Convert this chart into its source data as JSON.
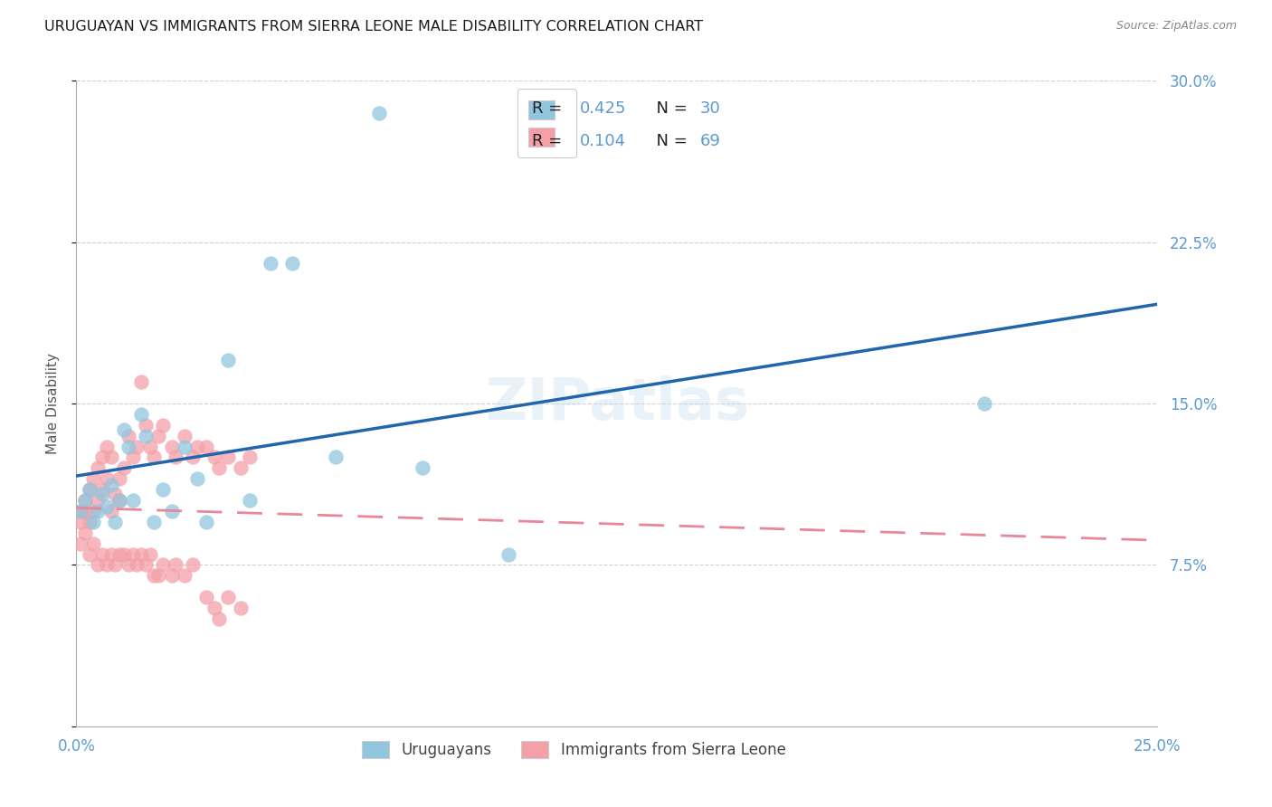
{
  "title": "URUGUAYAN VS IMMIGRANTS FROM SIERRA LEONE MALE DISABILITY CORRELATION CHART",
  "source": "Source: ZipAtlas.com",
  "ylabel": "Male Disability",
  "x_min": 0.0,
  "x_max": 0.25,
  "y_min": 0.0,
  "y_max": 0.3,
  "y_ticks": [
    0.0,
    0.075,
    0.15,
    0.225,
    0.3
  ],
  "y_tick_labels": [
    "",
    "7.5%",
    "15.0%",
    "22.5%",
    "30.0%"
  ],
  "x_ticks": [
    0.0,
    0.05,
    0.1,
    0.15,
    0.2,
    0.25
  ],
  "x_tick_labels": [
    "0.0%",
    "",
    "",
    "",
    "",
    "25.0%"
  ],
  "color_uruguayan": "#92c5de",
  "color_sierra_leone": "#f4a0a8",
  "color_line_uruguayan": "#2166ac",
  "color_line_sierra_leone": "#e8869a",
  "watermark": "ZIPatlas",
  "r1": "0.425",
  "n1": "30",
  "r2": "0.104",
  "n2": "69",
  "legend_label1": "Uruguayans",
  "legend_label2": "Immigrants from Sierra Leone",
  "tick_color": "#5b9bd5",
  "legend_r_color": "#5b9bd5",
  "legend_n_color": "#5b9bd5",
  "legend_rn_label_color": "#333333",
  "background_color": "#ffffff",
  "grid_color": "#d0d0d0",
  "uruguayan_x": [
    0.001,
    0.002,
    0.003,
    0.004,
    0.005,
    0.006,
    0.007,
    0.008,
    0.009,
    0.01,
    0.011,
    0.012,
    0.013,
    0.015,
    0.016,
    0.018,
    0.02,
    0.022,
    0.025,
    0.028,
    0.03,
    0.035,
    0.04,
    0.045,
    0.05,
    0.06,
    0.07,
    0.08,
    0.1,
    0.21
  ],
  "uruguayan_y": [
    0.1,
    0.105,
    0.11,
    0.095,
    0.1,
    0.108,
    0.102,
    0.112,
    0.095,
    0.105,
    0.138,
    0.13,
    0.105,
    0.145,
    0.135,
    0.095,
    0.11,
    0.1,
    0.13,
    0.115,
    0.095,
    0.17,
    0.105,
    0.215,
    0.215,
    0.125,
    0.285,
    0.12,
    0.08,
    0.15
  ],
  "sierra_leone_x": [
    0.001,
    0.001,
    0.002,
    0.002,
    0.003,
    0.003,
    0.004,
    0.004,
    0.005,
    0.005,
    0.006,
    0.006,
    0.007,
    0.007,
    0.008,
    0.008,
    0.009,
    0.01,
    0.01,
    0.011,
    0.012,
    0.013,
    0.014,
    0.015,
    0.016,
    0.017,
    0.018,
    0.019,
    0.02,
    0.022,
    0.023,
    0.025,
    0.027,
    0.028,
    0.03,
    0.032,
    0.033,
    0.035,
    0.038,
    0.04,
    0.001,
    0.002,
    0.003,
    0.004,
    0.005,
    0.006,
    0.007,
    0.008,
    0.009,
    0.01,
    0.011,
    0.012,
    0.013,
    0.014,
    0.015,
    0.016,
    0.017,
    0.018,
    0.019,
    0.02,
    0.022,
    0.023,
    0.025,
    0.027,
    0.03,
    0.032,
    0.033,
    0.035,
    0.038
  ],
  "sierra_leone_y": [
    0.1,
    0.095,
    0.105,
    0.1,
    0.11,
    0.095,
    0.115,
    0.1,
    0.12,
    0.105,
    0.125,
    0.11,
    0.13,
    0.115,
    0.125,
    0.1,
    0.108,
    0.115,
    0.105,
    0.12,
    0.135,
    0.125,
    0.13,
    0.16,
    0.14,
    0.13,
    0.125,
    0.135,
    0.14,
    0.13,
    0.125,
    0.135,
    0.125,
    0.13,
    0.13,
    0.125,
    0.12,
    0.125,
    0.12,
    0.125,
    0.085,
    0.09,
    0.08,
    0.085,
    0.075,
    0.08,
    0.075,
    0.08,
    0.075,
    0.08,
    0.08,
    0.075,
    0.08,
    0.075,
    0.08,
    0.075,
    0.08,
    0.07,
    0.07,
    0.075,
    0.07,
    0.075,
    0.07,
    0.075,
    0.06,
    0.055,
    0.05,
    0.06,
    0.055
  ],
  "title_fontsize": 11.5,
  "tick_fontsize": 12,
  "ylabel_fontsize": 11
}
